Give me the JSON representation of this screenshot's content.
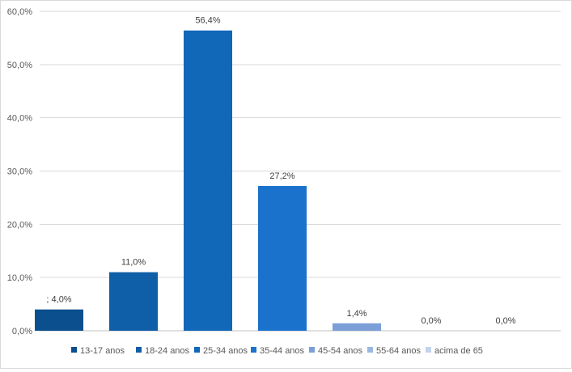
{
  "chart_data": {
    "type": "bar",
    "title": "",
    "xlabel": "",
    "ylabel": "",
    "ylim": [
      0,
      60
    ],
    "y_ticks": [
      "0,0%",
      "10,0%",
      "20,0%",
      "30,0%",
      "40,0%",
      "50,0%",
      "60,0%"
    ],
    "grid": true,
    "legend_position": "bottom",
    "categories": [
      "13-17 anos",
      "18-24 anos",
      "25-34 anos",
      "35-44 anos",
      "45-54 anos",
      "55-64 anos",
      "acima de 65"
    ],
    "values": [
      4.0,
      11.0,
      56.4,
      27.2,
      1.4,
      0.0,
      0.0
    ],
    "data_labels": [
      "; 4,0%",
      "11,0%",
      "56,4%",
      "27,2%",
      "1,4%",
      "0,0%",
      "0,0%"
    ],
    "colors": [
      "#0b4f8e",
      "#0f5ea8",
      "#1167b8",
      "#1b72cc",
      "#7b9fd6",
      "#9ab7e2",
      "#c3d3ec"
    ]
  }
}
